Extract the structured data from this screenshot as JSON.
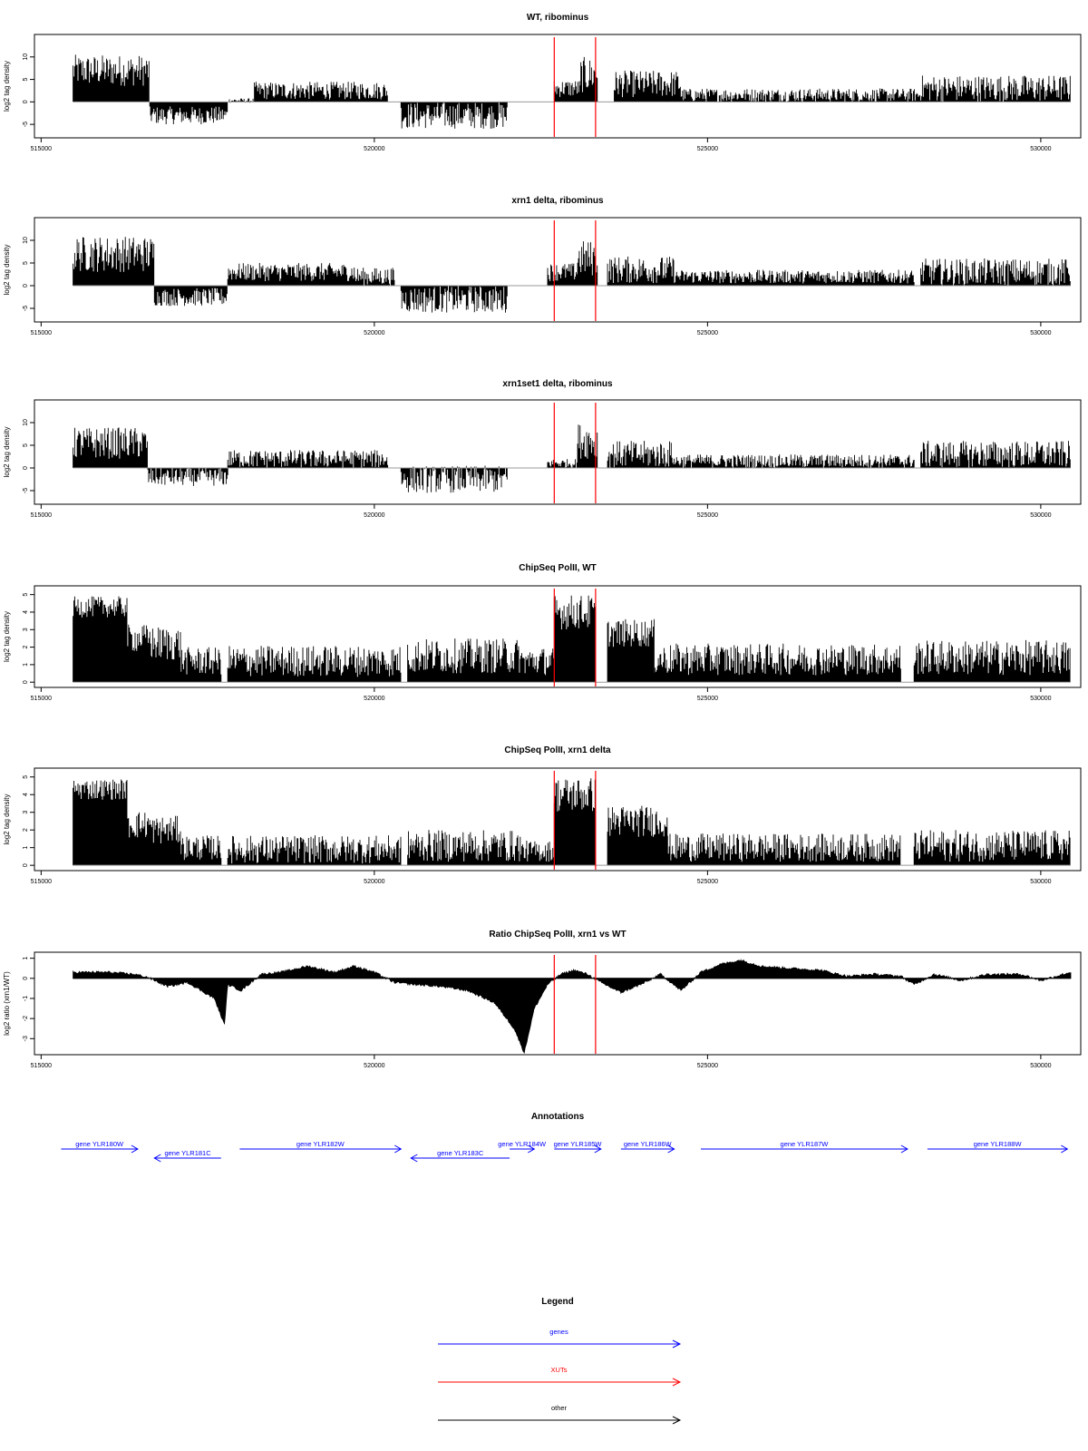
{
  "colors": {
    "bars": "#000000",
    "marker": "#ff0000",
    "frame": "#000000",
    "gene": "#0000ff",
    "xut": "#ff0000",
    "other": "#000000",
    "baseline": "#999999"
  },
  "chart_data": [
    {
      "type": "bar",
      "title": "WT, ribominus",
      "ylabel": "log2 tag density",
      "xlim": [
        514900,
        530600
      ],
      "ylim": [
        -8,
        15
      ],
      "yticks": [
        -5,
        0,
        5,
        10
      ],
      "xticks": [
        515000,
        520000,
        525000,
        530000
      ],
      "markers": [
        522700,
        523320
      ],
      "segments": [
        {
          "from": 515480,
          "to": 516630,
          "mean": 7,
          "amp": 3.5
        },
        {
          "from": 516630,
          "to": 517800,
          "mean": -3,
          "amp": 2
        },
        {
          "from": 517800,
          "to": 518200,
          "mean": 0.3,
          "amp": 0.5
        },
        {
          "from": 518200,
          "to": 520200,
          "mean": 2.5,
          "amp": 2
        },
        {
          "from": 520400,
          "to": 522000,
          "mean": -3,
          "amp": 3
        },
        {
          "from": 522700,
          "to": 523100,
          "mean": 3,
          "amp": 2
        },
        {
          "from": 523100,
          "to": 523350,
          "mean": 6,
          "amp": 4
        },
        {
          "from": 523600,
          "to": 524600,
          "mean": 4,
          "amp": 3
        },
        {
          "from": 524600,
          "to": 528200,
          "mean": 1.5,
          "amp": 1.5
        },
        {
          "from": 528200,
          "to": 530450,
          "mean": 3,
          "amp": 3
        }
      ]
    },
    {
      "type": "bar",
      "title": "xrn1 delta, ribominus",
      "ylabel": "log2 tag density",
      "xlim": [
        514900,
        530600
      ],
      "ylim": [
        -8,
        15
      ],
      "yticks": [
        -5,
        0,
        5,
        10
      ],
      "xticks": [
        515000,
        520000,
        525000,
        530000
      ],
      "markers": [
        522700,
        523320
      ],
      "segments": [
        {
          "from": 515480,
          "to": 516700,
          "mean": 7,
          "amp": 4
        },
        {
          "from": 516700,
          "to": 517800,
          "mean": -2.5,
          "amp": 2
        },
        {
          "from": 517800,
          "to": 519700,
          "mean": 3,
          "amp": 2
        },
        {
          "from": 519700,
          "to": 520300,
          "mean": 2,
          "amp": 2
        },
        {
          "from": 520400,
          "to": 522000,
          "mean": -3,
          "amp": 3
        },
        {
          "from": 522600,
          "to": 523050,
          "mean": 3,
          "amp": 2
        },
        {
          "from": 523050,
          "to": 523350,
          "mean": 6,
          "amp": 4
        },
        {
          "from": 523500,
          "to": 524500,
          "mean": 3.5,
          "amp": 3
        },
        {
          "from": 524500,
          "to": 528100,
          "mean": 2,
          "amp": 1.5
        },
        {
          "from": 528200,
          "to": 530450,
          "mean": 3,
          "amp": 3
        }
      ]
    },
    {
      "type": "bar",
      "title": "xrn1set1 delta, ribominus",
      "ylabel": "log2 tag density",
      "xlim": [
        514900,
        530600
      ],
      "ylim": [
        -8,
        15
      ],
      "yticks": [
        -5,
        0,
        5,
        10
      ],
      "xticks": [
        515000,
        520000,
        525000,
        530000
      ],
      "markers": [
        522700,
        523320
      ],
      "segments": [
        {
          "from": 515480,
          "to": 516600,
          "mean": 5.5,
          "amp": 3.5
        },
        {
          "from": 516600,
          "to": 517800,
          "mean": -2,
          "amp": 2
        },
        {
          "from": 517800,
          "to": 520200,
          "mean": 2,
          "amp": 2
        },
        {
          "from": 520400,
          "to": 522000,
          "mean": -2.5,
          "amp": 3
        },
        {
          "from": 522600,
          "to": 523050,
          "mean": 1,
          "amp": 1
        },
        {
          "from": 523050,
          "to": 523350,
          "mean": 6,
          "amp": 4
        },
        {
          "from": 523500,
          "to": 524500,
          "mean": 3,
          "amp": 3
        },
        {
          "from": 524500,
          "to": 528100,
          "mean": 1.5,
          "amp": 1.5
        },
        {
          "from": 528200,
          "to": 530450,
          "mean": 3,
          "amp": 3
        }
      ]
    },
    {
      "type": "bar",
      "title": "ChipSeq PolII, WT",
      "ylabel": "log2 tag density",
      "xlim": [
        514900,
        530600
      ],
      "ylim": [
        -0.3,
        5.5
      ],
      "yticks": [
        0,
        1,
        2,
        3,
        4,
        5
      ],
      "xticks": [
        515000,
        520000,
        525000,
        530000
      ],
      "markers": [
        522700,
        523320
      ],
      "segments": [
        {
          "from": 515480,
          "to": 516300,
          "mean": 4.3,
          "amp": 0.6
        },
        {
          "from": 516300,
          "to": 516650,
          "mean": 2.5,
          "amp": 0.8
        },
        {
          "from": 516650,
          "to": 517100,
          "mean": 2.2,
          "amp": 1
        },
        {
          "from": 517100,
          "to": 517700,
          "mean": 1.2,
          "amp": 0.8
        },
        {
          "from": 517800,
          "to": 520400,
          "mean": 1.2,
          "amp": 0.9
        },
        {
          "from": 520500,
          "to": 522200,
          "mean": 1.5,
          "amp": 1
        },
        {
          "from": 522200,
          "to": 522700,
          "mean": 1.2,
          "amp": 0.8
        },
        {
          "from": 522700,
          "to": 523320,
          "mean": 4,
          "amp": 1
        },
        {
          "from": 523500,
          "to": 524200,
          "mean": 2.8,
          "amp": 0.8
        },
        {
          "from": 524200,
          "to": 527900,
          "mean": 1.3,
          "amp": 0.9
        },
        {
          "from": 528100,
          "to": 530450,
          "mean": 1.4,
          "amp": 1
        }
      ]
    },
    {
      "type": "bar",
      "title": "ChipSeq PolII, xrn1 delta",
      "ylabel": "log2 tag density",
      "xlim": [
        514900,
        530600
      ],
      "ylim": [
        -0.3,
        5.5
      ],
      "yticks": [
        0,
        1,
        2,
        3,
        4,
        5
      ],
      "xticks": [
        515000,
        520000,
        525000,
        530000
      ],
      "markers": [
        522700,
        523320
      ],
      "segments": [
        {
          "from": 515480,
          "to": 516300,
          "mean": 4.3,
          "amp": 0.6
        },
        {
          "from": 516300,
          "to": 516650,
          "mean": 2.3,
          "amp": 0.8
        },
        {
          "from": 516650,
          "to": 517100,
          "mean": 2,
          "amp": 0.8
        },
        {
          "from": 517100,
          "to": 517700,
          "mean": 1,
          "amp": 0.7
        },
        {
          "from": 517800,
          "to": 520400,
          "mean": 0.9,
          "amp": 0.8
        },
        {
          "from": 520500,
          "to": 522200,
          "mean": 1.1,
          "amp": 0.9
        },
        {
          "from": 522200,
          "to": 522700,
          "mean": 0.8,
          "amp": 0.6
        },
        {
          "from": 522700,
          "to": 523320,
          "mean": 4,
          "amp": 1
        },
        {
          "from": 523500,
          "to": 524400,
          "mean": 2.5,
          "amp": 0.9
        },
        {
          "from": 524400,
          "to": 527900,
          "mean": 1,
          "amp": 0.8
        },
        {
          "from": 528100,
          "to": 530450,
          "mean": 1.1,
          "amp": 0.9
        }
      ]
    },
    {
      "type": "area",
      "title": "Ratio ChipSeq PolII, xrn1 vs WT",
      "ylabel": "log2 ratio (xrn1/WT)",
      "xlim": [
        514900,
        530600
      ],
      "ylim": [
        -3.8,
        1.3
      ],
      "yticks": [
        -3,
        -2,
        -1,
        0,
        1
      ],
      "xticks": [
        515000,
        520000,
        525000,
        530000
      ],
      "markers": [
        522700,
        523320
      ],
      "points": [
        [
          515480,
          0.3
        ],
        [
          516000,
          0.3
        ],
        [
          516400,
          0.2
        ],
        [
          516600,
          0.05
        ],
        [
          516900,
          -0.4
        ],
        [
          517200,
          -0.2
        ],
        [
          517400,
          -0.6
        ],
        [
          517600,
          -1.0
        ],
        [
          517750,
          -2.3
        ],
        [
          517800,
          -0.3
        ],
        [
          518000,
          -0.6
        ],
        [
          518300,
          0.2
        ],
        [
          518600,
          0.3
        ],
        [
          519000,
          0.6
        ],
        [
          519400,
          0.3
        ],
        [
          519700,
          0.6
        ],
        [
          520000,
          0.3
        ],
        [
          520300,
          -0.2
        ],
        [
          520600,
          -0.3
        ],
        [
          521000,
          -0.4
        ],
        [
          521400,
          -0.6
        ],
        [
          521800,
          -1.2
        ],
        [
          522100,
          -2.5
        ],
        [
          522250,
          -3.7
        ],
        [
          522400,
          -1.5
        ],
        [
          522600,
          -0.3
        ],
        [
          522800,
          0.2
        ],
        [
          523000,
          0.4
        ],
        [
          523200,
          0.2
        ],
        [
          523400,
          -0.2
        ],
        [
          523700,
          -0.7
        ],
        [
          524000,
          -0.3
        ],
        [
          524300,
          0.2
        ],
        [
          524600,
          -0.6
        ],
        [
          524900,
          0.3
        ],
        [
          525200,
          0.7
        ],
        [
          525500,
          0.9
        ],
        [
          525800,
          0.6
        ],
        [
          526200,
          0.5
        ],
        [
          526700,
          0.4
        ],
        [
          527100,
          0.1
        ],
        [
          527500,
          0.2
        ],
        [
          527900,
          0.1
        ],
        [
          528100,
          -0.3
        ],
        [
          528400,
          0.2
        ],
        [
          528800,
          -0.1
        ],
        [
          529200,
          0.2
        ],
        [
          529700,
          0.2
        ],
        [
          530000,
          -0.1
        ],
        [
          530450,
          0.3
        ]
      ]
    }
  ],
  "annotations": {
    "title": "Annotations",
    "genes": [
      {
        "label": "gene YLR180W",
        "start": 515300,
        "end": 516450,
        "strand": "+",
        "row": 0
      },
      {
        "label": "gene YLR181C",
        "start": 516700,
        "end": 517700,
        "strand": "-",
        "row": 1
      },
      {
        "label": "gene YLR182W",
        "start": 517980,
        "end": 520400,
        "strand": "+",
        "row": 0
      },
      {
        "label": "gene YLR183C",
        "start": 520550,
        "end": 522030,
        "strand": "-",
        "row": 1
      },
      {
        "label": "gene YLR184W",
        "start": 522030,
        "end": 522400,
        "strand": "+",
        "row": 0
      },
      {
        "label": "gene YLR185W",
        "start": 522700,
        "end": 523400,
        "strand": "+",
        "row": 0
      },
      {
        "label": "gene YLR186W",
        "start": 523700,
        "end": 524500,
        "strand": "+",
        "row": 0
      },
      {
        "label": "gene YLR187W",
        "start": 524900,
        "end": 528000,
        "strand": "+",
        "row": 0
      },
      {
        "label": "gene YLR188W",
        "start": 528300,
        "end": 530400,
        "strand": "+",
        "row": 0
      }
    ]
  },
  "legend": {
    "title": "Legend",
    "items": [
      {
        "label": "genes",
        "color": "#0000ff"
      },
      {
        "label": "XUTs",
        "color": "#ff0000"
      },
      {
        "label": "other",
        "color": "#000000"
      }
    ]
  }
}
